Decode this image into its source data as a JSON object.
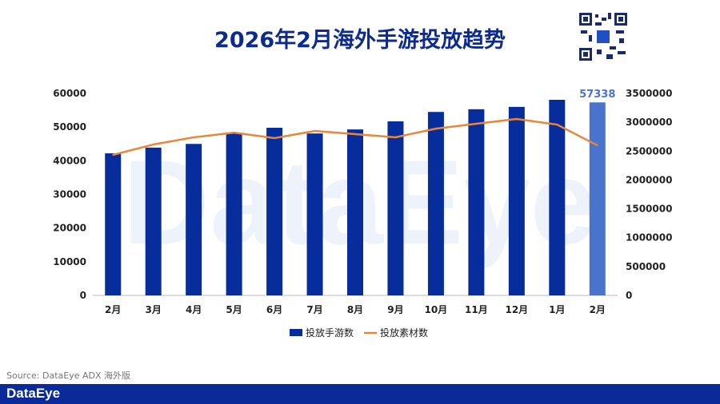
{
  "title": "2026年2月海外手游投放趋势",
  "source": "Source: DataEye ADX 海外版",
  "logo": "DataEye",
  "chart_data": {
    "type": "bar+line",
    "title": "2026年2月海外手游投放趋势",
    "categories": [
      "2月",
      "3月",
      "4月",
      "5月",
      "6月",
      "7月",
      "8月",
      "9月",
      "10月",
      "11月",
      "12月",
      "1月",
      "2月"
    ],
    "series": [
      {
        "name": "投放手游数",
        "type": "bar",
        "axis": "left",
        "color": "#062d9b",
        "highlight_last_color": "#4a74cc",
        "values": [
          42200,
          43900,
          45000,
          48100,
          49800,
          48100,
          49300,
          51700,
          54500,
          55300,
          56000,
          58100,
          57338
        ]
      },
      {
        "name": "投放素材数",
        "type": "line",
        "axis": "right",
        "color": "#e8873a",
        "values": [
          2435000,
          2615000,
          2740000,
          2820000,
          2725000,
          2850000,
          2795000,
          2740000,
          2890000,
          2975000,
          3057000,
          2960000,
          2600000
        ]
      }
    ],
    "data_labels": [
      {
        "index": 12,
        "text": "57338"
      }
    ],
    "y_left": {
      "ylim": [
        0,
        60000
      ],
      "ticks": [
        "0",
        "10000",
        "20000",
        "30000",
        "40000",
        "50000",
        "60000"
      ]
    },
    "y_right": {
      "ylim": [
        0,
        3500000
      ],
      "ticks": [
        "0",
        "500000",
        "1000000",
        "1500000",
        "2000000",
        "2500000",
        "3000000",
        "3500000"
      ]
    },
    "legend_position": "bottom",
    "grid": false
  }
}
